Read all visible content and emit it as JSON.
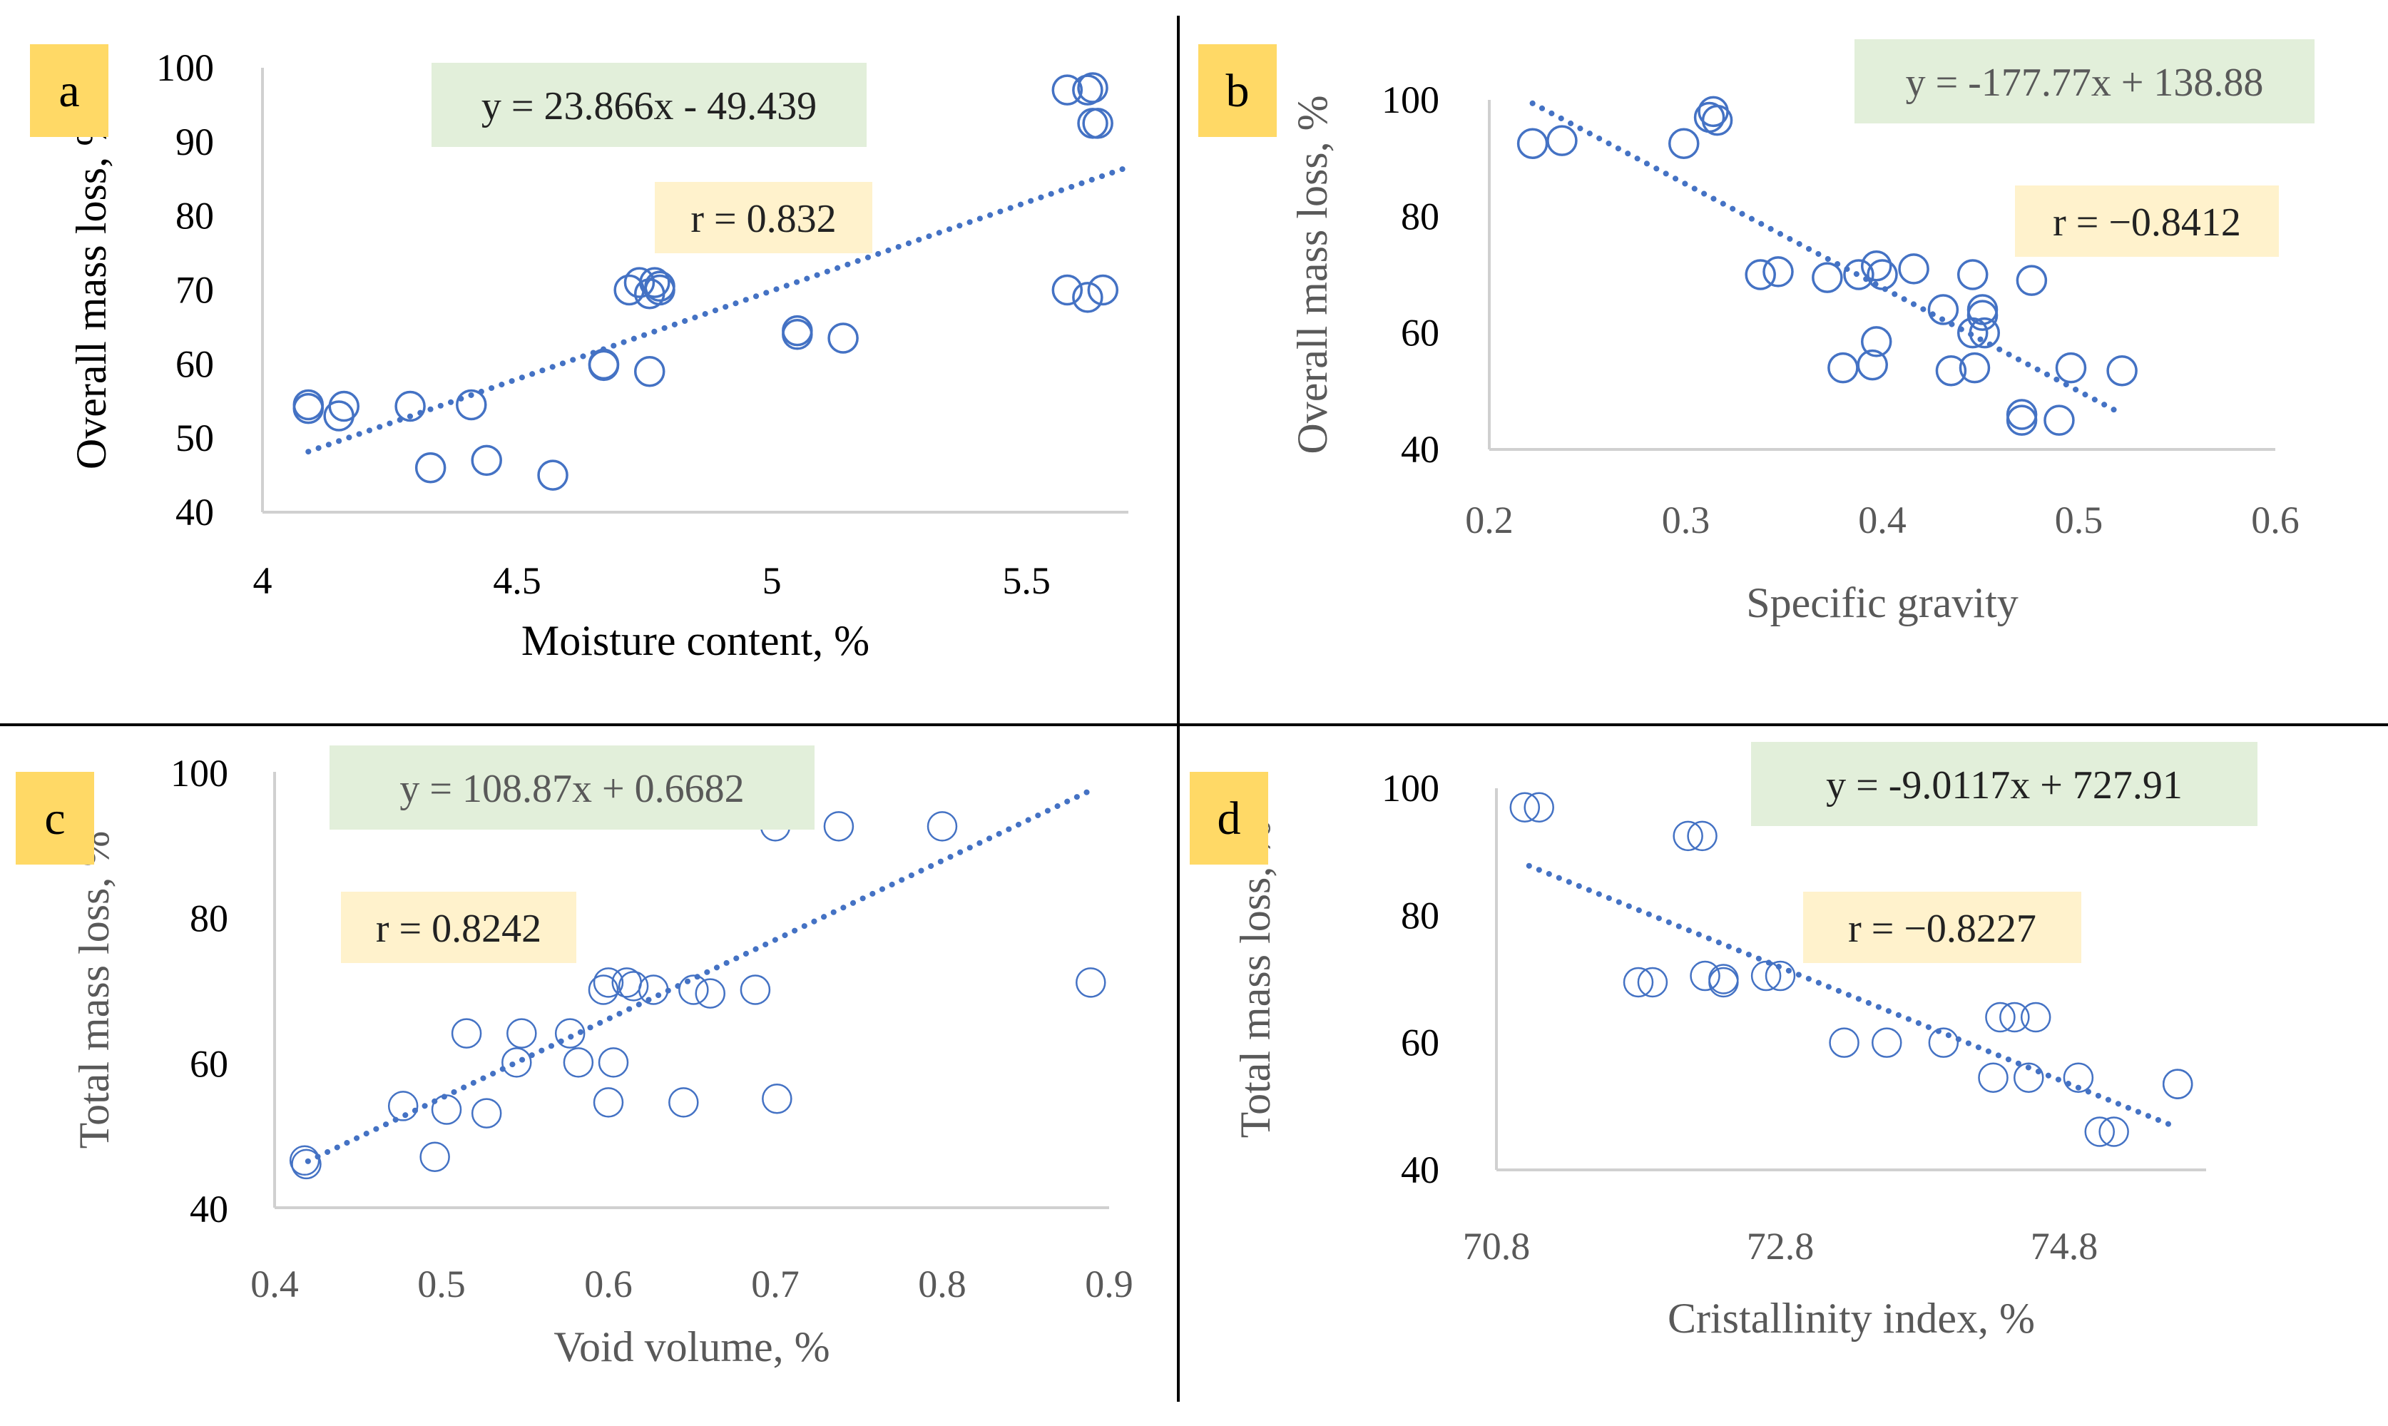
{
  "colors": {
    "marker": "#4472C4",
    "trend": "#4472C4",
    "axis": "#d0d0d0",
    "divider": "#000000",
    "panel_label_bg": "#FFD966",
    "equation_bg": "#E2EFDA",
    "r_bg": "#FFF2CC",
    "text_dark": "#222222",
    "text_gray": "#595959"
  },
  "chart_data": [
    {
      "id": "a",
      "type": "scatter",
      "panel_label": "a",
      "xlabel": "Moisture content, %",
      "ylabel": "Overall mass loss, %",
      "xlim": [
        4,
        5.7
      ],
      "ylim": [
        40,
        100
      ],
      "x_ticks": [
        "4",
        "4.5",
        "5",
        "5.5"
      ],
      "y_ticks": [
        "40",
        "50",
        "60",
        "70",
        "80",
        "90",
        "100"
      ],
      "equation": "y = 23.866x - 49.439",
      "r_text": "r = 0.832",
      "trendline": {
        "slope": 23.866,
        "intercept": -49.439,
        "x_range": [
          4.09,
          5.7
        ]
      },
      "points": [
        [
          4.09,
          54
        ],
        [
          4.09,
          54.5
        ],
        [
          4.15,
          53
        ],
        [
          4.16,
          54.3
        ],
        [
          4.29,
          54.3
        ],
        [
          4.33,
          46
        ],
        [
          4.41,
          54.5
        ],
        [
          4.44,
          47
        ],
        [
          4.57,
          45
        ],
        [
          4.67,
          60
        ],
        [
          4.67,
          59.8
        ],
        [
          4.72,
          70
        ],
        [
          4.74,
          71
        ],
        [
          4.76,
          69.5
        ],
        [
          4.76,
          59
        ],
        [
          4.77,
          71
        ],
        [
          4.78,
          70.5
        ],
        [
          4.78,
          70
        ],
        [
          5.05,
          64.5
        ],
        [
          5.05,
          64
        ],
        [
          5.14,
          63.5
        ],
        [
          5.58,
          97
        ],
        [
          5.58,
          70
        ],
        [
          5.62,
          97
        ],
        [
          5.62,
          69
        ],
        [
          5.63,
          97.3
        ],
        [
          5.63,
          92.5
        ],
        [
          5.64,
          92.5
        ],
        [
          5.65,
          70
        ]
      ]
    },
    {
      "id": "b",
      "type": "scatter",
      "panel_label": "b",
      "xlabel": "Specific gravity",
      "ylabel": "Overall mass loss, %",
      "xlim": [
        0.2,
        0.6
      ],
      "ylim": [
        40,
        100
      ],
      "x_ticks": [
        "0.2",
        "0.3",
        "0.4",
        "0.5",
        "0.6"
      ],
      "y_ticks": [
        "40",
        "60",
        "80",
        "100"
      ],
      "equation": "y = -177.77x + 138.88",
      "r_text": "r = −0.8412",
      "trendline": {
        "slope": -177.77,
        "intercept": 138.88,
        "x_range": [
          0.222,
          0.522
        ]
      },
      "points": [
        [
          0.222,
          92.5
        ],
        [
          0.237,
          93
        ],
        [
          0.299,
          92.5
        ],
        [
          0.312,
          97
        ],
        [
          0.314,
          98
        ],
        [
          0.316,
          96.5
        ],
        [
          0.338,
          70
        ],
        [
          0.347,
          70.5
        ],
        [
          0.372,
          69.5
        ],
        [
          0.38,
          54
        ],
        [
          0.388,
          70
        ],
        [
          0.395,
          54.5
        ],
        [
          0.397,
          58.5
        ],
        [
          0.397,
          71.5
        ],
        [
          0.4,
          70
        ],
        [
          0.416,
          71
        ],
        [
          0.431,
          64
        ],
        [
          0.435,
          53.5
        ],
        [
          0.446,
          70
        ],
        [
          0.446,
          60
        ],
        [
          0.447,
          54
        ],
        [
          0.451,
          64
        ],
        [
          0.451,
          63
        ],
        [
          0.452,
          60
        ],
        [
          0.471,
          46
        ],
        [
          0.471,
          45
        ],
        [
          0.476,
          69
        ],
        [
          0.49,
          45
        ],
        [
          0.496,
          54
        ],
        [
          0.522,
          53.5
        ]
      ]
    },
    {
      "id": "c",
      "type": "scatter",
      "panel_label": "c",
      "xlabel": "Void volume, %",
      "ylabel": "Total mass loss, %",
      "xlim": [
        0.4,
        0.9
      ],
      "ylim": [
        40,
        100
      ],
      "x_ticks": [
        "0.4",
        "0.5",
        "0.6",
        "0.7",
        "0.8",
        "0.9"
      ],
      "y_ticks": [
        "40",
        "60",
        "80",
        "100"
      ],
      "equation": "y = 108.87x + 0.6682",
      "r_text": "r = 0.8242",
      "trendline": {
        "slope": 108.87,
        "intercept": 0.6682,
        "x_range": [
          0.42,
          0.89
        ]
      },
      "points": [
        [
          0.418,
          46.5
        ],
        [
          0.419,
          46
        ],
        [
          0.477,
          54
        ],
        [
          0.496,
          47
        ],
        [
          0.503,
          53.5
        ],
        [
          0.515,
          64
        ],
        [
          0.527,
          53
        ],
        [
          0.545,
          60
        ],
        [
          0.548,
          64
        ],
        [
          0.577,
          64
        ],
        [
          0.582,
          60
        ],
        [
          0.597,
          70
        ],
        [
          0.6,
          71
        ],
        [
          0.6,
          54.5
        ],
        [
          0.603,
          60
        ],
        [
          0.611,
          71
        ],
        [
          0.615,
          70.5
        ],
        [
          0.627,
          70
        ],
        [
          0.645,
          54.5
        ],
        [
          0.651,
          70
        ],
        [
          0.661,
          69.5
        ],
        [
          0.688,
          70
        ],
        [
          0.7,
          92.5
        ],
        [
          0.701,
          55
        ],
        [
          0.738,
          92.5
        ],
        [
          0.8,
          92.5
        ],
        [
          0.889,
          71
        ]
      ]
    },
    {
      "id": "d",
      "type": "scatter",
      "panel_label": "d",
      "xlabel": "Cristallinity index, %",
      "ylabel": "Total mass loss, %",
      "xlim": [
        70.8,
        75.8
      ],
      "ylim": [
        40,
        100
      ],
      "x_ticks": [
        "70.8",
        "72.8",
        "74.8"
      ],
      "y_ticks": [
        "40",
        "60",
        "80",
        "100"
      ],
      "equation": "y = -9.0117x + 727.91",
      "r_text": "r = −0.8227",
      "trendline": {
        "slope": -9.0117,
        "intercept": 727.91,
        "x_range": [
          71.03,
          75.6
        ]
      },
      "points": [
        [
          71.0,
          97
        ],
        [
          71.1,
          97
        ],
        [
          71.8,
          69.5
        ],
        [
          71.9,
          69.5
        ],
        [
          72.15,
          92.5
        ],
        [
          72.25,
          92.5
        ],
        [
          72.27,
          70.5
        ],
        [
          72.4,
          70
        ],
        [
          72.4,
          69.5
        ],
        [
          72.7,
          70.5
        ],
        [
          72.8,
          70.5
        ],
        [
          73.25,
          60
        ],
        [
          73.55,
          60
        ],
        [
          73.95,
          60
        ],
        [
          74.3,
          54.5
        ],
        [
          74.35,
          64
        ],
        [
          74.45,
          64
        ],
        [
          74.55,
          54.5
        ],
        [
          74.6,
          64
        ],
        [
          74.9,
          54.5
        ],
        [
          75.05,
          46
        ],
        [
          75.15,
          46
        ],
        [
          75.6,
          53.5
        ],
        [
          75.6,
          53.5
        ]
      ]
    }
  ]
}
